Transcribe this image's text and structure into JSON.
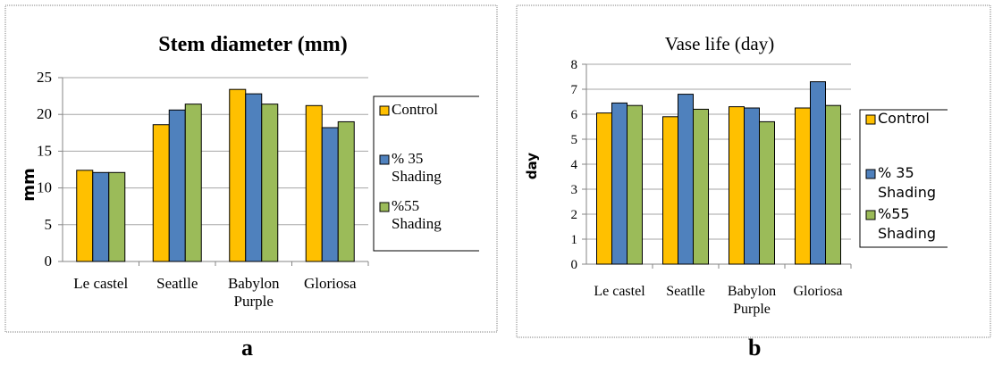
{
  "colors": {
    "control": "#ffc000",
    "shading35": "#4f81bd",
    "shading55": "#9bbb59",
    "frame": "#808080",
    "axis": "#868686",
    "grid": "#a6a6a6"
  },
  "legend_labels": {
    "control": [
      "Control"
    ],
    "shading35": [
      "% 35",
      "Shading"
    ],
    "shading55": [
      "%55",
      "Shading"
    ]
  },
  "panels": {
    "a": {
      "label": "a"
    },
    "b": {
      "label": "b"
    }
  },
  "chart_data": [
    {
      "type": "bar",
      "title": "Stem diameter (mm)",
      "xlabel": "",
      "ylabel": "mm",
      "ylim": [
        0,
        25
      ],
      "yticks": [
        0,
        5,
        10,
        15,
        20,
        25
      ],
      "grid": true,
      "legend_position": "right",
      "categories": [
        [
          "Le castel"
        ],
        [
          "Seatlle"
        ],
        [
          "Babylon",
          "Purple"
        ],
        [
          "Gloriosa"
        ]
      ],
      "series": [
        {
          "name": "Control",
          "color_key": "control",
          "values": [
            12.4,
            18.6,
            23.4,
            21.2
          ]
        },
        {
          "name": "% 35 Shading",
          "color_key": "shading35",
          "values": [
            12.1,
            20.6,
            22.8,
            18.2
          ]
        },
        {
          "name": "%55 Shading",
          "color_key": "shading55",
          "values": [
            12.1,
            21.4,
            21.4,
            19.0
          ]
        }
      ]
    },
    {
      "type": "bar",
      "title": "Vase life (day)",
      "xlabel": "",
      "ylabel": "day",
      "ylim": [
        0,
        8
      ],
      "yticks": [
        0,
        1,
        2,
        3,
        4,
        5,
        6,
        7,
        8
      ],
      "grid": true,
      "legend_position": "right",
      "categories": [
        [
          "Le castel"
        ],
        [
          "Seatlle"
        ],
        [
          "Babylon",
          "Purple"
        ],
        [
          "Gloriosa"
        ]
      ],
      "series": [
        {
          "name": "Control",
          "color_key": "control",
          "values": [
            6.05,
            5.9,
            6.3,
            6.25
          ]
        },
        {
          "name": "% 35 Shading",
          "color_key": "shading35",
          "values": [
            6.45,
            6.8,
            6.25,
            7.3
          ]
        },
        {
          "name": "%55 Shading",
          "color_key": "shading55",
          "values": [
            6.35,
            6.2,
            5.7,
            6.35
          ]
        }
      ]
    }
  ]
}
